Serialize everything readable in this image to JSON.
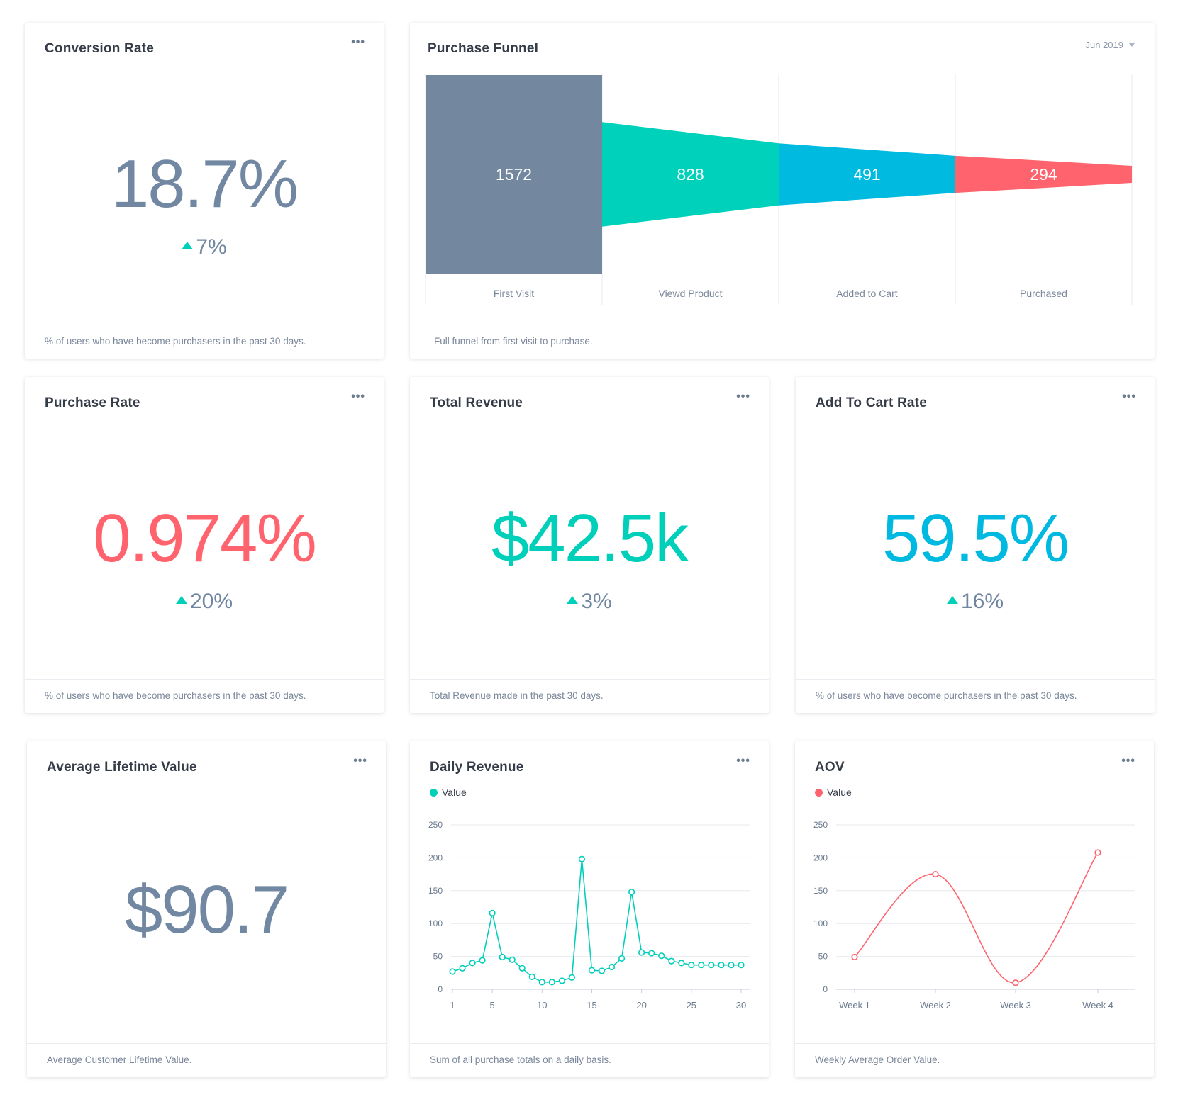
{
  "conversion_rate": {
    "title": "Conversion Rate",
    "value": "18.7%",
    "delta": "7%",
    "footer": "% of users who have become purchasers in the past 30 days.",
    "value_color": "#7288a2"
  },
  "purchase_funnel": {
    "title": "Purchase Funnel",
    "period": "Jun 2019",
    "footer": "Full funnel from first visit to purchase.",
    "stages": [
      {
        "label": "First Visit",
        "value": "1572",
        "color": "#73889e"
      },
      {
        "label": "Viewd Product",
        "value": "828",
        "color": "#00d1bb"
      },
      {
        "label": "Added to Cart",
        "value": "491",
        "color": "#00bae0"
      },
      {
        "label": "Purchased",
        "value": "294",
        "color": "#ff636d"
      }
    ]
  },
  "purchase_rate": {
    "title": "Purchase Rate",
    "value": "0.974%",
    "delta": "20%",
    "footer": "% of users who have become purchasers in the past 30 days.",
    "value_color": "#ff636d"
  },
  "total_revenue": {
    "title": "Total Revenue",
    "value": "$42.5k",
    "delta": "3%",
    "footer": "Total Revenue made in the past 30 days.",
    "value_color": "#00cfb9"
  },
  "add_to_cart_rate": {
    "title": "Add To Cart Rate",
    "value": "59.5%",
    "delta": "16%",
    "footer": "% of users who have become purchasers in the past 30 days.",
    "value_color": "#00b9e0"
  },
  "average_lifetime_value": {
    "title": "Average Lifetime Value",
    "value": "$90.7",
    "footer": "Average Customer Lifetime Value.",
    "value_color": "#7288a2"
  },
  "daily_revenue": {
    "title": "Daily Revenue",
    "legend": "Value",
    "footer": "Sum of all purchase totals on a daily basis.",
    "color": "#00cfb9"
  },
  "aov": {
    "title": "AOV",
    "legend": "Value",
    "footer": "Weekly Average Order Value.",
    "color": "#ff636d"
  },
  "icons": {
    "menu": "more-horizontal-icon",
    "delta": "triangle-up-icon",
    "dropdown": "chevron-down-icon"
  },
  "chart_data": [
    {
      "type": "line",
      "title": "Daily Revenue",
      "series": [
        {
          "name": "Value",
          "x": [
            1,
            2,
            3,
            4,
            5,
            6,
            7,
            8,
            9,
            10,
            11,
            12,
            13,
            14,
            15,
            16,
            17,
            18,
            19,
            20,
            21,
            22,
            23,
            24,
            25,
            26,
            27,
            28,
            29,
            30
          ],
          "values": [
            27,
            32,
            40,
            44,
            116,
            49,
            45,
            32,
            19,
            11,
            11,
            13,
            18,
            198,
            29,
            28,
            34,
            47,
            148,
            56,
            55,
            51,
            43,
            40,
            37,
            37,
            37,
            37,
            37,
            37
          ]
        }
      ],
      "x_ticks": [
        1,
        5,
        10,
        15,
        20,
        25,
        30
      ],
      "y_ticks": [
        0,
        50,
        100,
        150,
        200,
        250
      ],
      "ylim": [
        0,
        250
      ],
      "grid": true,
      "legend": "top-left"
    },
    {
      "type": "line",
      "title": "AOV",
      "categories": [
        "Week 1",
        "Week 2",
        "Week 3",
        "Week 4"
      ],
      "series": [
        {
          "name": "Value",
          "values": [
            49,
            175,
            10,
            208
          ]
        }
      ],
      "y_ticks": [
        0,
        50,
        100,
        150,
        200,
        250
      ],
      "ylim": [
        0,
        250
      ],
      "grid": true,
      "legend": "top-left"
    }
  ]
}
